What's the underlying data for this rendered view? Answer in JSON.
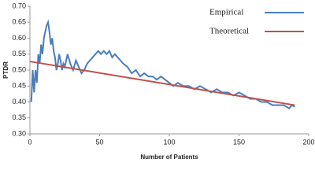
{
  "chart_data": {
    "type": "line",
    "x_label": "Number of Patients",
    "y_label": "PTDR",
    "xlim": [
      0,
      200
    ],
    "xticks": [
      0,
      50,
      100,
      150,
      200
    ],
    "ylim": [
      0.3,
      0.7
    ],
    "yticks": [
      {
        "value": 0.3,
        "label": "0.30"
      },
      0.35,
      {
        "value": 0.4,
        "label": "0.40"
      },
      0.45,
      {
        "value": 0.5,
        "label": "0.50"
      },
      0.55,
      {
        "value": 0.6,
        "label": "0.60"
      },
      0.65,
      {
        "value": 0.7,
        "label": "0.70"
      }
    ],
    "grid": false,
    "legend": "upper right",
    "series": [
      {
        "name": "Empirical",
        "color": "#4a7ebb",
        "x": [
          1,
          2,
          3,
          4,
          5,
          6,
          7,
          8,
          9,
          10,
          11,
          12,
          13,
          14,
          15,
          16,
          17,
          18,
          19,
          20,
          21,
          22,
          23,
          24,
          25,
          27,
          29,
          31,
          33,
          35,
          37,
          39,
          41,
          43,
          45,
          47,
          49,
          51,
          53,
          55,
          57,
          59,
          61,
          63,
          65,
          67,
          70,
          73,
          76,
          79,
          82,
          85,
          88,
          91,
          94,
          97,
          100,
          103,
          106,
          110,
          114,
          118,
          122,
          126,
          130,
          134,
          138,
          142,
          146,
          150,
          154,
          158,
          162,
          166,
          170,
          174,
          178,
          182,
          186,
          188,
          190
        ],
        "values": [
          0.4,
          0.5,
          0.43,
          0.5,
          0.46,
          0.55,
          0.52,
          0.58,
          0.55,
          0.6,
          0.62,
          0.64,
          0.65,
          0.62,
          0.58,
          0.6,
          0.56,
          0.54,
          0.5,
          0.52,
          0.55,
          0.53,
          0.5,
          0.52,
          0.51,
          0.55,
          0.52,
          0.5,
          0.53,
          0.51,
          0.49,
          0.5,
          0.52,
          0.53,
          0.54,
          0.55,
          0.56,
          0.55,
          0.56,
          0.55,
          0.56,
          0.54,
          0.55,
          0.54,
          0.53,
          0.52,
          0.51,
          0.49,
          0.5,
          0.48,
          0.49,
          0.48,
          0.48,
          0.47,
          0.48,
          0.47,
          0.46,
          0.45,
          0.46,
          0.45,
          0.45,
          0.44,
          0.45,
          0.44,
          0.43,
          0.44,
          0.43,
          0.43,
          0.42,
          0.43,
          0.42,
          0.41,
          0.41,
          0.4,
          0.4,
          0.39,
          0.39,
          0.39,
          0.38,
          0.39,
          0.385
        ]
      },
      {
        "name": "Theoretical",
        "color": "#c0504d",
        "x": [
          0,
          190
        ],
        "values": [
          0.527,
          0.39
        ]
      }
    ]
  }
}
